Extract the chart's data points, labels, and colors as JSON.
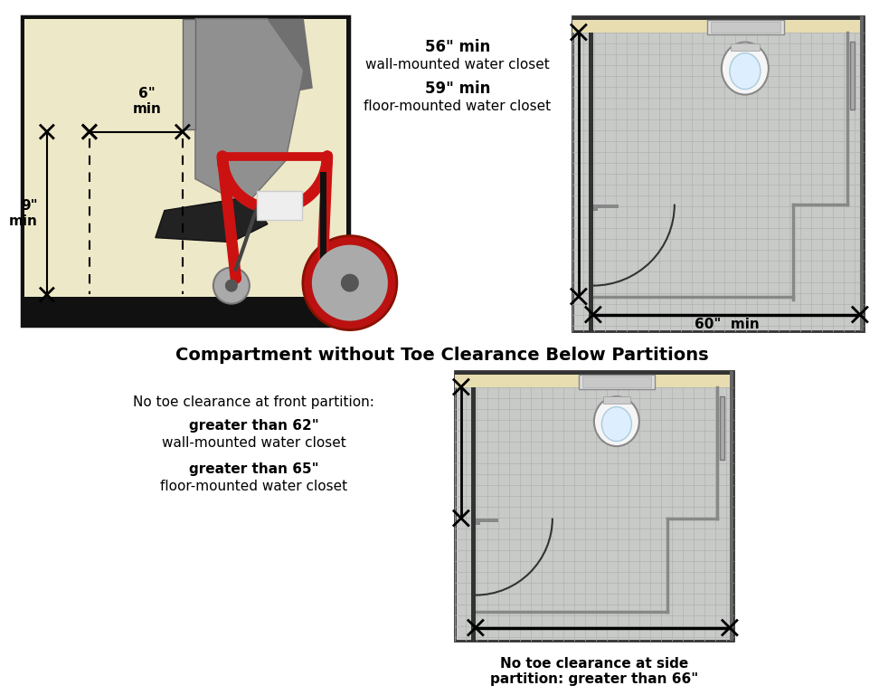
{
  "bg_color": "#ffffff",
  "title_middle": "Compartment without Toe Clearance Below Partitions",
  "beige_ill": "#ede8c8",
  "beige_wall": "#e8ddb0",
  "grid_bg": "#c8cac8",
  "grid_color": "#b0b2b0",
  "wall_dark": "#333333",
  "wall_mid": "#666666",
  "partition_gray": "#888888",
  "label_6in": "6\"\nmin",
  "label_9in": "9\"\nmin",
  "label_60in": "60\"  min",
  "top_right_text": [
    "56\" min",
    "wall-mounted water closet",
    "59\" min",
    "floor-mounted water closet"
  ],
  "bottom_left_text": [
    "No toe clearance at front partition:",
    "greater than 62\"",
    "wall-mounted water closet",
    "greater than 65\"",
    "floor-mounted water closet"
  ],
  "bottom_right_label": "No toe clearance at side\npartition: greater than 66\""
}
